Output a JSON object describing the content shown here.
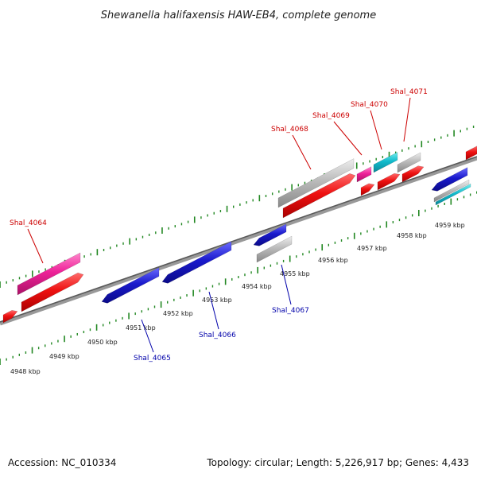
{
  "title": "Shewanella halifaxensis HAW-EB4, complete genome",
  "footer": {
    "accession": "Accession: NC_010334",
    "summary": "Topology: circular; Length: 5,226,917 bp; Genes: 4,433"
  },
  "ruler": {
    "unit": "kbp",
    "labels": [
      "4948 kbp",
      "4949 kbp",
      "4950 kbp",
      "4951 kbp",
      "4952 kbp",
      "4953 kbp",
      "4954 kbp",
      "4955 kbp",
      "4956 kbp",
      "4957 kbp",
      "4958 kbp",
      "4959 kbp"
    ]
  },
  "gene_labels": {
    "top": [
      "Shal_4064",
      "Shal_4068",
      "Shal_4069",
      "Shal_4070",
      "Shal_4071"
    ],
    "bottom": [
      "Shal_4065",
      "Shal_4066",
      "Shal_4067"
    ]
  },
  "colors": {
    "forward_gene": "#ee1111",
    "reverse_gene": "#1a1acc",
    "pink_gene": "#ee2299",
    "cyan_gene": "#11bbcc",
    "grey_gene": "#bbbbbb",
    "backbone": "#888888",
    "ticks": "#228822",
    "label_top": "#cc0000",
    "label_bottom": "#0000aa"
  }
}
